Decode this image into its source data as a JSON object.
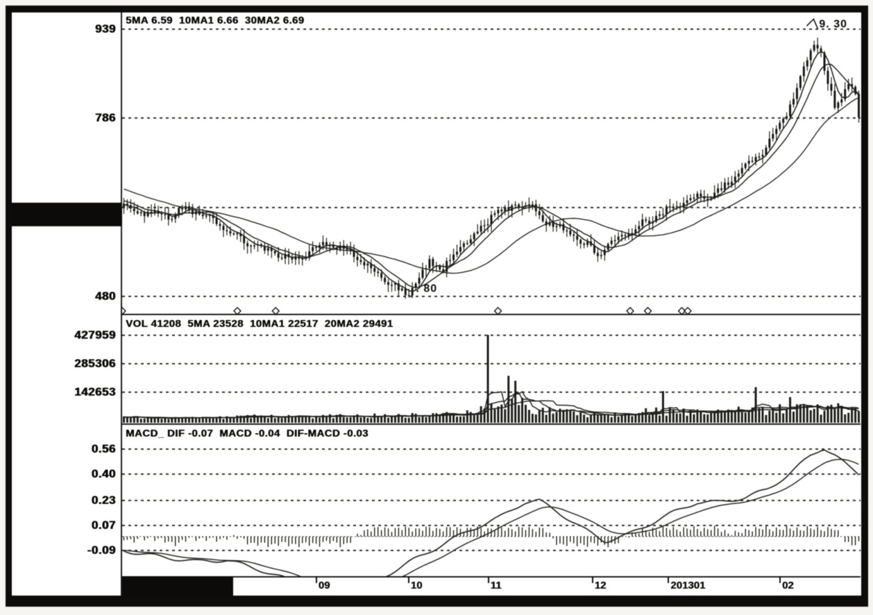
{
  "colors": {
    "ink": "#1a1a1a",
    "paper": "#fcfcf9",
    "frame": "#141311"
  },
  "x_axis": {
    "labels": [
      {
        "text": "09",
        "t": 0.262
      },
      {
        "text": "10",
        "t": 0.387
      },
      {
        "text": "11",
        "t": 0.495
      },
      {
        "text": "12",
        "t": 0.636
      },
      {
        "text": "201301",
        "t": 0.739
      },
      {
        "text": "02",
        "t": 0.89
      }
    ],
    "left_redacted_region": true
  },
  "chart_data": [
    {
      "type": "candlestick",
      "title": "5MA 6.59  10MA1 6.66  30MA2 6.69",
      "legend_values": {
        "5MA": 6.59,
        "10MA1": 6.66,
        "30MA2": 6.69
      },
      "ylim": [
        4.49,
        9.68
      ],
      "grid": true,
      "y_ticks": [
        {
          "label": "939",
          "value": 9.39
        },
        {
          "label": "786",
          "value": 7.86
        },
        {
          "label": "",
          "value": 6.33
        },
        {
          "label": "480",
          "value": 4.8
        }
      ],
      "candle_count": 215,
      "prehistory_keypoints": [
        [
          -0.16,
          7.05
        ],
        [
          -0.06,
          6.6
        ]
      ],
      "close_keypoints": [
        [
          0.0,
          6.35
        ],
        [
          0.03,
          6.22
        ],
        [
          0.06,
          6.18
        ],
        [
          0.085,
          6.32
        ],
        [
          0.105,
          6.22
        ],
        [
          0.14,
          5.95
        ],
        [
          0.175,
          5.68
        ],
        [
          0.21,
          5.5
        ],
        [
          0.24,
          5.42
        ],
        [
          0.27,
          5.72
        ],
        [
          0.3,
          5.62
        ],
        [
          0.33,
          5.32
        ],
        [
          0.355,
          5.08
        ],
        [
          0.385,
          4.83
        ],
        [
          0.4,
          5.05
        ],
        [
          0.415,
          5.38
        ],
        [
          0.435,
          5.28
        ],
        [
          0.455,
          5.62
        ],
        [
          0.475,
          5.8
        ],
        [
          0.492,
          6.02
        ],
        [
          0.503,
          6.3
        ],
        [
          0.515,
          6.22
        ],
        [
          0.53,
          6.34
        ],
        [
          0.545,
          6.42
        ],
        [
          0.56,
          6.28
        ],
        [
          0.58,
          6.05
        ],
        [
          0.605,
          5.92
        ],
        [
          0.625,
          5.72
        ],
        [
          0.645,
          5.55
        ],
        [
          0.665,
          5.72
        ],
        [
          0.685,
          5.9
        ],
        [
          0.705,
          6.06
        ],
        [
          0.72,
          6.14
        ],
        [
          0.74,
          6.3
        ],
        [
          0.765,
          6.44
        ],
        [
          0.79,
          6.52
        ],
        [
          0.815,
          6.65
        ],
        [
          0.84,
          6.95
        ],
        [
          0.862,
          7.2
        ],
        [
          0.883,
          7.55
        ],
        [
          0.903,
          8.0
        ],
        [
          0.922,
          8.6
        ],
        [
          0.938,
          9.18
        ],
        [
          0.947,
          9.05
        ],
        [
          0.958,
          8.45
        ],
        [
          0.968,
          8.05
        ],
        [
          0.977,
          8.28
        ],
        [
          0.988,
          8.48
        ],
        [
          0.995,
          8.3
        ],
        [
          1.0,
          7.8
        ]
      ],
      "moving_averages": [
        5,
        10,
        30
      ],
      "annotations": [
        {
          "text": "9. 30",
          "t": 0.944,
          "value": 9.42,
          "arrow": true
        },
        {
          "text": ". 80",
          "t": 0.398,
          "value": 4.88,
          "arrow": false
        }
      ],
      "event_markers_t": [
        0.0,
        0.156,
        0.208,
        0.509,
        0.688,
        0.712,
        0.758,
        0.766
      ]
    },
    {
      "type": "bar",
      "title": "VOL 41208  5MA 23528  10MA1 22517  20MA2 29491",
      "legend_values": {
        "VOL": 41208,
        "5MA": 23528,
        "10MA1": 22517,
        "20MA2": 29491
      },
      "ylim": [
        0,
        450000
      ],
      "grid": true,
      "y_ticks": [
        {
          "label": "427959",
          "value": 427959
        },
        {
          "label": "285306",
          "value": 285306
        },
        {
          "label": "142653",
          "value": 142653
        }
      ],
      "base_keypoints": [
        [
          0.0,
          16000
        ],
        [
          0.06,
          13000
        ],
        [
          0.12,
          15000
        ],
        [
          0.18,
          22000
        ],
        [
          0.24,
          18000
        ],
        [
          0.3,
          24000
        ],
        [
          0.36,
          26000
        ],
        [
          0.42,
          30000
        ],
        [
          0.46,
          38000
        ],
        [
          0.49,
          55000
        ],
        [
          0.51,
          80000
        ],
        [
          0.53,
          95000
        ],
        [
          0.555,
          65000
        ],
        [
          0.58,
          48000
        ],
        [
          0.61,
          38000
        ],
        [
          0.645,
          30000
        ],
        [
          0.675,
          36000
        ],
        [
          0.7,
          42000
        ],
        [
          0.73,
          52000
        ],
        [
          0.76,
          44000
        ],
        [
          0.8,
          42000
        ],
        [
          0.84,
          48000
        ],
        [
          0.88,
          52000
        ],
        [
          0.92,
          62000
        ],
        [
          0.96,
          58000
        ],
        [
          1.0,
          65000
        ]
      ],
      "spikes": [
        [
          0.497,
          430000
        ],
        [
          0.524,
          225000
        ],
        [
          0.535,
          200000
        ],
        [
          0.733,
          148000
        ],
        [
          0.862,
          168000
        ],
        [
          0.905,
          118000
        ]
      ],
      "moving_averages": [
        5,
        10,
        20
      ]
    },
    {
      "type": "line",
      "title": "MACD_ DIF -0.07  MACD -0.04  DIF-MACD -0.03",
      "legend_values": {
        "DIF": -0.07,
        "MACD": -0.04,
        "DIF-MACD": -0.03
      },
      "ylim": [
        -0.26,
        0.72
      ],
      "grid": true,
      "y_ticks": [
        {
          "label": "0.56",
          "value": 0.56
        },
        {
          "label": "0.40",
          "value": 0.4
        },
        {
          "label": "0.23",
          "value": 0.23
        },
        {
          "label": "0.07",
          "value": 0.07
        },
        {
          "label": "-0.09",
          "value": -0.09
        }
      ],
      "dif_keypoints": [
        [
          0.0,
          -0.09
        ],
        [
          0.05,
          -0.13
        ],
        [
          0.1,
          -0.16
        ],
        [
          0.14,
          -0.15
        ],
        [
          0.19,
          -0.22
        ],
        [
          0.25,
          -0.32
        ],
        [
          0.3,
          -0.36
        ],
        [
          0.345,
          -0.28
        ],
        [
          0.39,
          -0.16
        ],
        [
          0.43,
          -0.06
        ],
        [
          0.47,
          0.04
        ],
        [
          0.51,
          0.12
        ],
        [
          0.545,
          0.22
        ],
        [
          0.565,
          0.23
        ],
        [
          0.59,
          0.16
        ],
        [
          0.625,
          0.05
        ],
        [
          0.655,
          -0.03
        ],
        [
          0.685,
          0.01
        ],
        [
          0.715,
          0.08
        ],
        [
          0.75,
          0.16
        ],
        [
          0.78,
          0.22
        ],
        [
          0.81,
          0.22
        ],
        [
          0.845,
          0.25
        ],
        [
          0.875,
          0.3
        ],
        [
          0.905,
          0.4
        ],
        [
          0.935,
          0.52
        ],
        [
          0.952,
          0.57
        ],
        [
          0.968,
          0.52
        ],
        [
          0.985,
          0.45
        ],
        [
          1.0,
          0.4
        ]
      ],
      "series_names": [
        "DIF",
        "MACD",
        "DIF-MACD histogram"
      ]
    }
  ]
}
